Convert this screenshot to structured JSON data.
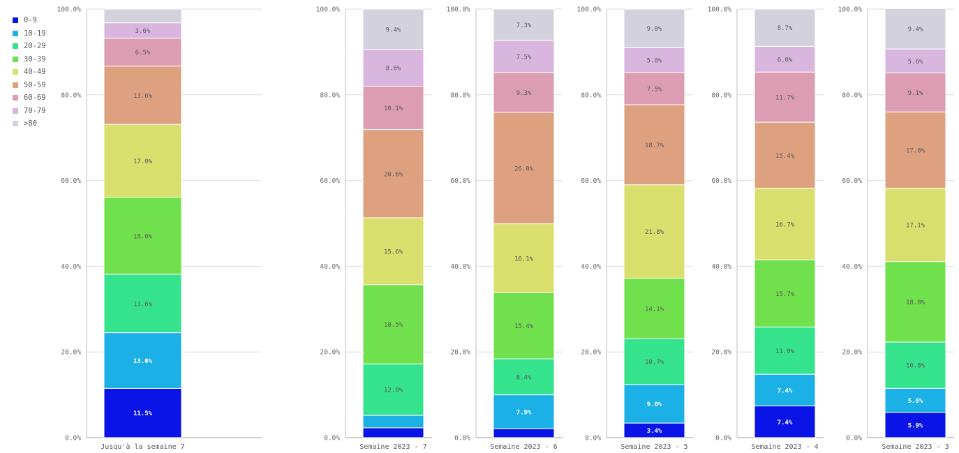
{
  "legend": {
    "items": [
      {
        "label": "0-9",
        "color": "#0a14e6"
      },
      {
        "label": "10-19",
        "color": "#1cb1e6"
      },
      {
        "label": "20-29",
        "color": "#35e38c"
      },
      {
        "label": "30-39",
        "color": "#70e04c"
      },
      {
        "label": "40-49",
        "color": "#d9df6c"
      },
      {
        "label": "50-59",
        "color": "#dea180"
      },
      {
        "label": "60-69",
        "color": "#dc9db3"
      },
      {
        "label": "70-79",
        "color": "#d8b6de"
      },
      {
        "label": ">80",
        "color": "#d3d2dc"
      }
    ]
  },
  "chart_data": [
    {
      "type": "bar",
      "stacked": true,
      "categories": [
        "Jusqu'à la semaine 7"
      ],
      "yticks": [
        "0.0%",
        "20.0%",
        "40.0%",
        "60.0%",
        "80.0%",
        "100.0%"
      ],
      "ylim": [
        0,
        100
      ],
      "grid": true,
      "series": [
        {
          "name": "0-9",
          "values": [
            11.5
          ],
          "label": "11.5%"
        },
        {
          "name": "10-19",
          "values": [
            13.0
          ],
          "label": "13.0%"
        },
        {
          "name": "20-29",
          "values": [
            13.6
          ],
          "label": "13.6%"
        },
        {
          "name": "30-39",
          "values": [
            18.0
          ],
          "label": "18.0%"
        },
        {
          "name": "40-49",
          "values": [
            17.0
          ],
          "label": "17.0%"
        },
        {
          "name": "50-59",
          "values": [
            13.6
          ],
          "label": "13.6%"
        },
        {
          "name": "60-69",
          "values": [
            6.5
          ],
          "label": "6.5%"
        },
        {
          "name": "70-79",
          "values": [
            3.6
          ],
          "label": "3.6%"
        },
        {
          "name": ">80",
          "values": [
            3.2
          ],
          "label": ""
        }
      ]
    },
    {
      "type": "bar",
      "stacked": true,
      "categories": [
        "Semaine 2023 - 7"
      ],
      "yticks": [
        "0.0%",
        "20.0%",
        "40.0%",
        "60.0%",
        "80.0%",
        "100.0%"
      ],
      "ylim": [
        0,
        100
      ],
      "grid": true,
      "series": [
        {
          "name": "0-9",
          "values": [
            2.3
          ],
          "label": ""
        },
        {
          "name": "10-19",
          "values": [
            2.9
          ],
          "label": ""
        },
        {
          "name": "20-29",
          "values": [
            12.0
          ],
          "label": "12.0%"
        },
        {
          "name": "30-39",
          "values": [
            18.5
          ],
          "label": "18.5%"
        },
        {
          "name": "40-49",
          "values": [
            15.6
          ],
          "label": "15.6%"
        },
        {
          "name": "50-59",
          "values": [
            20.6
          ],
          "label": "20.6%"
        },
        {
          "name": "60-69",
          "values": [
            10.1
          ],
          "label": "10.1%"
        },
        {
          "name": "70-79",
          "values": [
            8.6
          ],
          "label": "8.6%"
        },
        {
          "name": ">80",
          "values": [
            9.4
          ],
          "label": "9.4%"
        }
      ]
    },
    {
      "type": "bar",
      "stacked": true,
      "categories": [
        "Semaine 2023 - 6"
      ],
      "yticks": [
        "0.0%",
        "20.0%",
        "40.0%",
        "60.0%",
        "80.0%",
        "100.0%"
      ],
      "ylim": [
        0,
        100
      ],
      "grid": true,
      "series": [
        {
          "name": "0-9",
          "values": [
            2.1
          ],
          "label": ""
        },
        {
          "name": "10-19",
          "values": [
            7.9
          ],
          "label": "7.9%"
        },
        {
          "name": "20-29",
          "values": [
            8.4
          ],
          "label": "8.4%"
        },
        {
          "name": "30-39",
          "values": [
            15.4
          ],
          "label": "15.4%"
        },
        {
          "name": "40-49",
          "values": [
            16.1
          ],
          "label": "16.1%"
        },
        {
          "name": "50-59",
          "values": [
            26.0
          ],
          "label": "26.0%"
        },
        {
          "name": "60-69",
          "values": [
            9.3
          ],
          "label": "9.3%"
        },
        {
          "name": "70-79",
          "values": [
            7.5
          ],
          "label": "7.5%"
        },
        {
          "name": ">80",
          "values": [
            7.3
          ],
          "label": "7.3%"
        }
      ]
    },
    {
      "type": "bar",
      "stacked": true,
      "categories": [
        "Semaine 2023 - 5"
      ],
      "yticks": [
        "0.0%",
        "20.0%",
        "40.0%",
        "60.0%",
        "80.0%",
        "100.0%"
      ],
      "ylim": [
        0,
        100
      ],
      "grid": true,
      "series": [
        {
          "name": "0-9",
          "values": [
            3.4
          ],
          "label": "3.4%"
        },
        {
          "name": "10-19",
          "values": [
            9.0
          ],
          "label": "9.0%"
        },
        {
          "name": "20-29",
          "values": [
            10.7
          ],
          "label": "10.7%"
        },
        {
          "name": "30-39",
          "values": [
            14.1
          ],
          "label": "14.1%"
        },
        {
          "name": "40-49",
          "values": [
            21.8
          ],
          "label": "21.8%"
        },
        {
          "name": "50-59",
          "values": [
            18.7
          ],
          "label": "18.7%"
        },
        {
          "name": "60-69",
          "values": [
            7.5
          ],
          "label": "7.5%"
        },
        {
          "name": "70-79",
          "values": [
            5.8
          ],
          "label": "5.8%"
        },
        {
          "name": ">80",
          "values": [
            9.0
          ],
          "label": "9.0%"
        }
      ]
    },
    {
      "type": "bar",
      "stacked": true,
      "categories": [
        "Semaine 2023 - 4"
      ],
      "yticks": [
        "0.0%",
        "20.0%",
        "40.0%",
        "60.0%",
        "80.0%",
        "100.0%"
      ],
      "ylim": [
        0,
        100
      ],
      "grid": true,
      "series": [
        {
          "name": "0-9",
          "values": [
            7.4
          ],
          "label": "7.4%"
        },
        {
          "name": "10-19",
          "values": [
            7.4
          ],
          "label": "7.4%"
        },
        {
          "name": "20-29",
          "values": [
            11.0
          ],
          "label": "11.0%"
        },
        {
          "name": "30-39",
          "values": [
            15.7
          ],
          "label": "15.7%"
        },
        {
          "name": "40-49",
          "values": [
            16.7
          ],
          "label": "16.7%"
        },
        {
          "name": "50-59",
          "values": [
            15.4
          ],
          "label": "15.4%"
        },
        {
          "name": "60-69",
          "values": [
            11.7
          ],
          "label": "11.7%"
        },
        {
          "name": "70-79",
          "values": [
            6.0
          ],
          "label": "6.0%"
        },
        {
          "name": ">80",
          "values": [
            8.7
          ],
          "label": "8.7%"
        }
      ]
    },
    {
      "type": "bar",
      "stacked": true,
      "categories": [
        "Semaine 2023 - 3"
      ],
      "yticks": [
        "0.0%",
        "20.0%",
        "40.0%",
        "60.0%",
        "80.0%",
        "100.0%"
      ],
      "ylim": [
        0,
        100
      ],
      "grid": true,
      "series": [
        {
          "name": "0-9",
          "values": [
            5.9
          ],
          "label": "5.9%"
        },
        {
          "name": "10-19",
          "values": [
            5.6
          ],
          "label": "5.6%"
        },
        {
          "name": "20-29",
          "values": [
            10.8
          ],
          "label": "10.8%"
        },
        {
          "name": "30-39",
          "values": [
            18.8
          ],
          "label": "18.8%"
        },
        {
          "name": "40-49",
          "values": [
            17.1
          ],
          "label": "17.1%"
        },
        {
          "name": "50-59",
          "values": [
            17.8
          ],
          "label": "17.8%"
        },
        {
          "name": "60-69",
          "values": [
            9.1
          ],
          "label": "9.1%"
        },
        {
          "name": "70-79",
          "values": [
            5.6
          ],
          "label": "5.6%"
        },
        {
          "name": ">80",
          "values": [
            9.4
          ],
          "label": "9.4%"
        }
      ]
    }
  ]
}
